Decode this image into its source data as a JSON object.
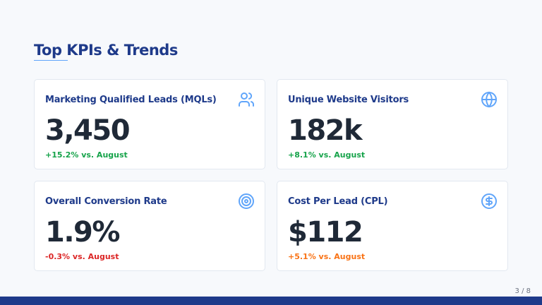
{
  "title": "Top KPIs & Trends",
  "cards": [
    {
      "label": "Marketing Qualified Leads (MQLs)",
      "value": "3,450",
      "change": "+15.2% vs. August",
      "change_color": "#16a34a",
      "icon": "users-icon"
    },
    {
      "label": "Unique Website Visitors",
      "value": "182k",
      "change": "+8.1% vs. August",
      "change_color": "#16a34a",
      "icon": "globe-icon"
    },
    {
      "label": "Overall Conversion Rate",
      "value": "1.9%",
      "change": "-0.3% vs. August",
      "change_color": "#dc2626",
      "icon": "target-icon"
    },
    {
      "label": "Cost Per Lead (CPL)",
      "value": "$112",
      "change": "+5.1% vs. August",
      "change_color": "#f97316",
      "icon": "dollar-circle-icon"
    }
  ],
  "page_indicator": "3 / 8",
  "colors": {
    "accent": "#1e3a8a",
    "icon": "#60a5fa"
  }
}
